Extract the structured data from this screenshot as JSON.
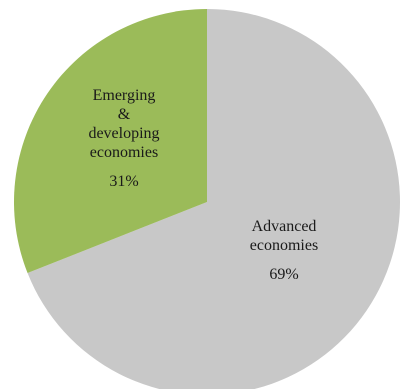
{
  "chart_data": {
    "type": "pie",
    "title": "",
    "slices": [
      {
        "label_lines": [
          "Advanced",
          "economies"
        ],
        "value": 69,
        "value_label": "69%",
        "color": "#c8c8c8"
      },
      {
        "label_lines": [
          "Emerging",
          "&",
          "developing",
          "economies"
        ],
        "value": 31,
        "value_label": "31%",
        "color": "#9bbb59"
      }
    ],
    "legend": "none"
  }
}
